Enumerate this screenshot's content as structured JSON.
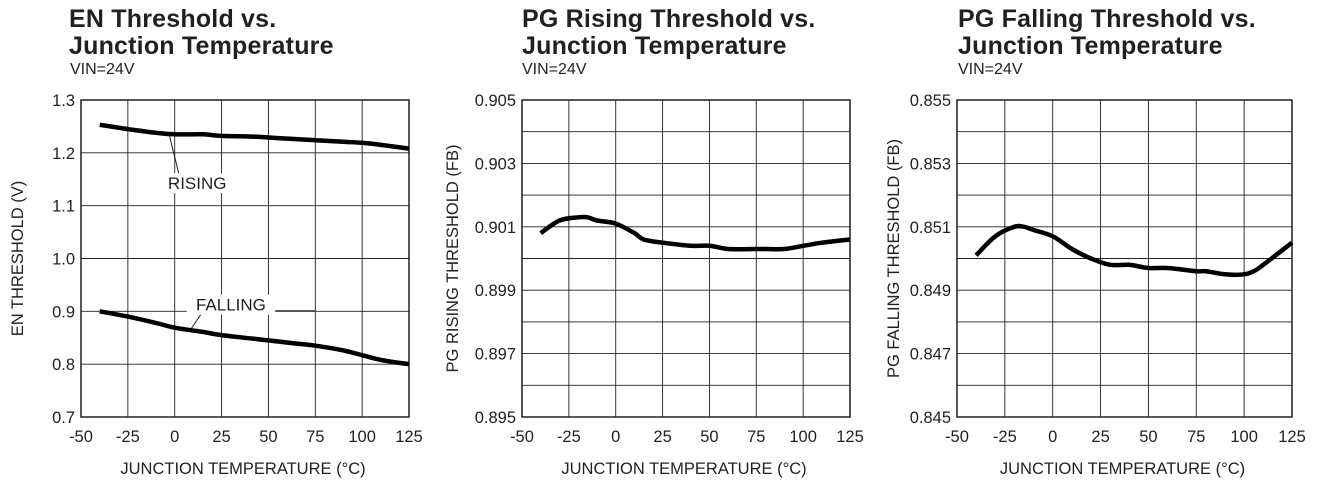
{
  "chart_data": [
    {
      "type": "line",
      "title": [
        "EN Threshold vs.",
        "Junction Temperature"
      ],
      "condition": "VIN=24V",
      "xlabel": "JUNCTION TEMPERATURE (°C)",
      "ylabel": "EN THRESHOLD (V)",
      "xlim": [
        -50,
        125
      ],
      "ylim": [
        0.7,
        1.3
      ],
      "xticks": [
        -50,
        -25,
        0,
        25,
        50,
        75,
        100,
        125
      ],
      "xtick_labels": [
        "-50",
        "-25",
        "0",
        "25",
        "50",
        "75",
        "100",
        "125"
      ],
      "yticks": [
        0.7,
        0.8,
        0.9,
        1.0,
        1.1,
        1.2,
        1.3
      ],
      "ytick_labels": [
        "0.7",
        "0.8",
        "0.9",
        "1.0",
        "1.1",
        "1.2",
        "1.3"
      ],
      "grid": true,
      "series": [
        {
          "name": "RISING",
          "x": [
            -40,
            -25,
            -10,
            0,
            15,
            25,
            40,
            50,
            65,
            75,
            90,
            100,
            110,
            125
          ],
          "y": [
            1.253,
            1.245,
            1.238,
            1.235,
            1.235,
            1.232,
            1.231,
            1.229,
            1.226,
            1.224,
            1.221,
            1.219,
            1.215,
            1.208
          ]
        },
        {
          "name": "FALLING",
          "x": [
            -40,
            -25,
            -10,
            0,
            15,
            25,
            40,
            50,
            65,
            75,
            90,
            100,
            110,
            125
          ],
          "y": [
            0.9,
            0.89,
            0.878,
            0.869,
            0.861,
            0.855,
            0.849,
            0.845,
            0.839,
            0.835,
            0.826,
            0.817,
            0.808,
            0.8
          ]
        }
      ],
      "annotations": [
        {
          "text": "RISING",
          "x": 12,
          "y": 1.135,
          "point_x": -3,
          "point_y": 1.235
        },
        {
          "text": "FALLING",
          "x": 30,
          "y": 0.905,
          "point_x": 8,
          "point_y": 0.863,
          "line_to_x": 75
        }
      ]
    },
    {
      "type": "line",
      "title": [
        "PG Rising Threshold vs.",
        "Junction Temperature"
      ],
      "condition": "VIN=24V",
      "xlabel": "JUNCTION TEMPERATURE (°C)",
      "ylabel": "PG RISING THRESHOLD (FB)",
      "xlim": [
        -50,
        125
      ],
      "ylim": [
        0.895,
        0.905
      ],
      "xticks": [
        -50,
        -25,
        0,
        25,
        50,
        75,
        100,
        125
      ],
      "xtick_labels": [
        "-50",
        "-25",
        "0",
        "25",
        "50",
        "75",
        "100",
        "125"
      ],
      "yticks": [
        0.895,
        0.896,
        0.897,
        0.898,
        0.899,
        0.9,
        0.901,
        0.902,
        0.903,
        0.904,
        0.905
      ],
      "ytick_labels": [
        "0.895",
        "",
        "0.897",
        "",
        "0.899",
        "",
        "0.901",
        "",
        "0.903",
        "",
        "0.905"
      ],
      "grid": true,
      "series": [
        {
          "name": "",
          "x": [
            -40,
            -30,
            -20,
            -15,
            -10,
            0,
            10,
            15,
            25,
            40,
            50,
            60,
            75,
            80,
            90,
            100,
            110,
            125
          ],
          "y": [
            0.9008,
            0.9012,
            0.9013,
            0.9013,
            0.9012,
            0.9011,
            0.9008,
            0.9006,
            0.9005,
            0.9004,
            0.9004,
            0.9003,
            0.9003,
            0.9003,
            0.9003,
            0.9004,
            0.9005,
            0.9006
          ]
        }
      ]
    },
    {
      "type": "line",
      "title": [
        "PG Falling Threshold vs.",
        "Junction Temperature"
      ],
      "condition": "VIN=24V",
      "xlabel": "JUNCTION TEMPERATURE (°C)",
      "ylabel": "PG FALLING THRESHOLD (FB)",
      "xlim": [
        -50,
        125
      ],
      "ylim": [
        0.845,
        0.855
      ],
      "xticks": [
        -50,
        -25,
        0,
        25,
        50,
        75,
        100,
        125
      ],
      "xtick_labels": [
        "-50",
        "-25",
        "0",
        "25",
        "50",
        "75",
        "100",
        "125"
      ],
      "yticks": [
        0.845,
        0.846,
        0.847,
        0.848,
        0.849,
        0.85,
        0.851,
        0.852,
        0.853,
        0.854,
        0.855
      ],
      "ytick_labels": [
        "0.845",
        "",
        "0.847",
        "",
        "0.849",
        "",
        "0.851",
        "",
        "0.853",
        "",
        "0.855"
      ],
      "grid": true,
      "series": [
        {
          "name": "",
          "x": [
            -40,
            -30,
            -20,
            -15,
            -10,
            0,
            10,
            20,
            30,
            40,
            50,
            60,
            75,
            80,
            90,
            100,
            105,
            110,
            125
          ],
          "y": [
            0.8501,
            0.8507,
            0.851,
            0.851,
            0.8509,
            0.8507,
            0.8503,
            0.85,
            0.8498,
            0.8498,
            0.8497,
            0.8497,
            0.8496,
            0.8496,
            0.8495,
            0.8495,
            0.8496,
            0.8498,
            0.8505
          ]
        }
      ]
    }
  ]
}
